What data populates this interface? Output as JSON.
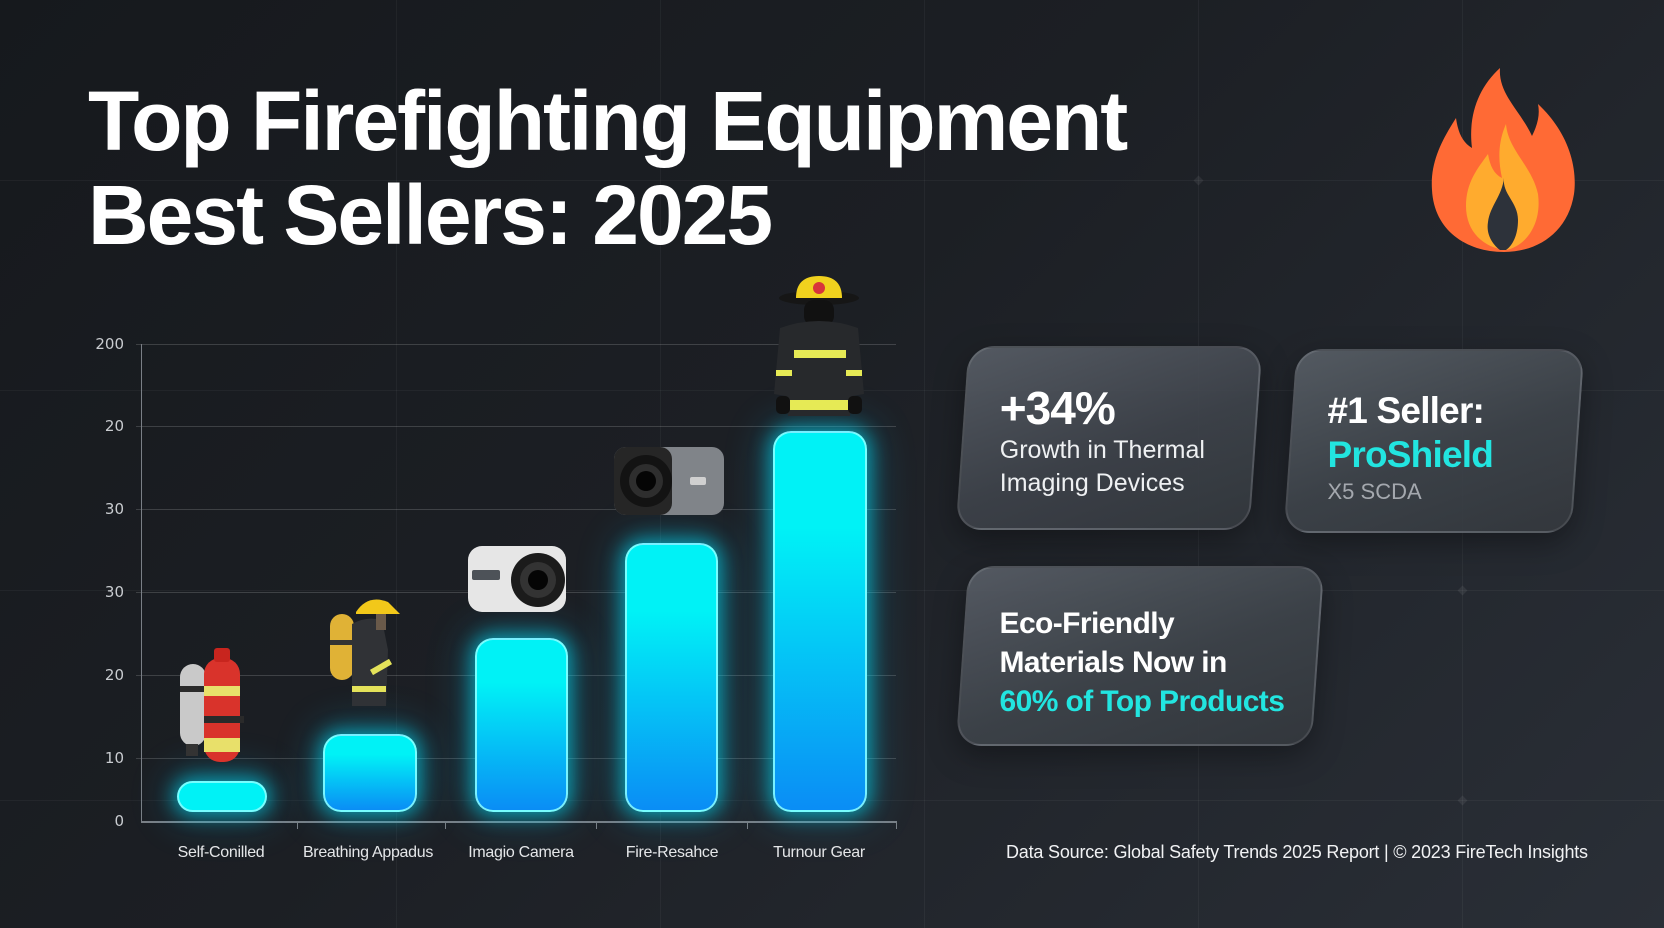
{
  "title": {
    "line1": "Top Firefighting Equipment",
    "line2": "Best Sellers: 2025"
  },
  "icons": {
    "header": "flame-icon",
    "bar_illustrations": [
      "scba-cylinder-icon",
      "firefighter-with-air-tank-icon",
      "white-thermal-camera-icon",
      "gray-thermal-camera-icon",
      "turnout-gear-firefighter-icon"
    ]
  },
  "colors": {
    "background_dark": "#15181c",
    "background_light": "#2b3038",
    "bar_top": "#00f2f6",
    "bar_bottom": "#0a8df5",
    "accent_cyan": "#22e5e0",
    "flame_outer": "#ff6a35",
    "flame_inner": "#ffab2e",
    "card_bg": "#4a4f56",
    "muted_text": "#a4a8ae"
  },
  "chart_data": {
    "type": "bar",
    "title": "Top Firefighting Equipment Best Sellers: 2025",
    "xlabel": "",
    "ylabel": "",
    "y_tick_labels_as_displayed": [
      "0",
      "10",
      "20",
      "30",
      "30",
      "20",
      "200"
    ],
    "ylim": [
      0,
      60
    ],
    "grid": true,
    "legend": null,
    "categories": [
      "Self-Conilled",
      "Breathing Appadus",
      "Imagio Camera",
      "Fire-Resahce",
      "Turnour Gear"
    ],
    "values": [
      5,
      11,
      23,
      35,
      49
    ],
    "note": "Y-axis tick labels in the image are irregular; values estimated assuming evenly spaced gridlines at 10-unit steps from 0."
  },
  "cards": [
    {
      "headline": "+34%",
      "lines": [
        "Growth in Thermal",
        "Imaging Devices"
      ]
    },
    {
      "headline": "#1 Seller:",
      "accent": "ProShield",
      "sub": "X5 SCDA"
    },
    {
      "lines": [
        "Eco-Friendly",
        "Materials Now in"
      ],
      "accent": "60% of Top Products"
    }
  ],
  "footer": {
    "text": "Data Source: Global Safety Trends 2025 Report | © 2023 FireTech Insights"
  }
}
